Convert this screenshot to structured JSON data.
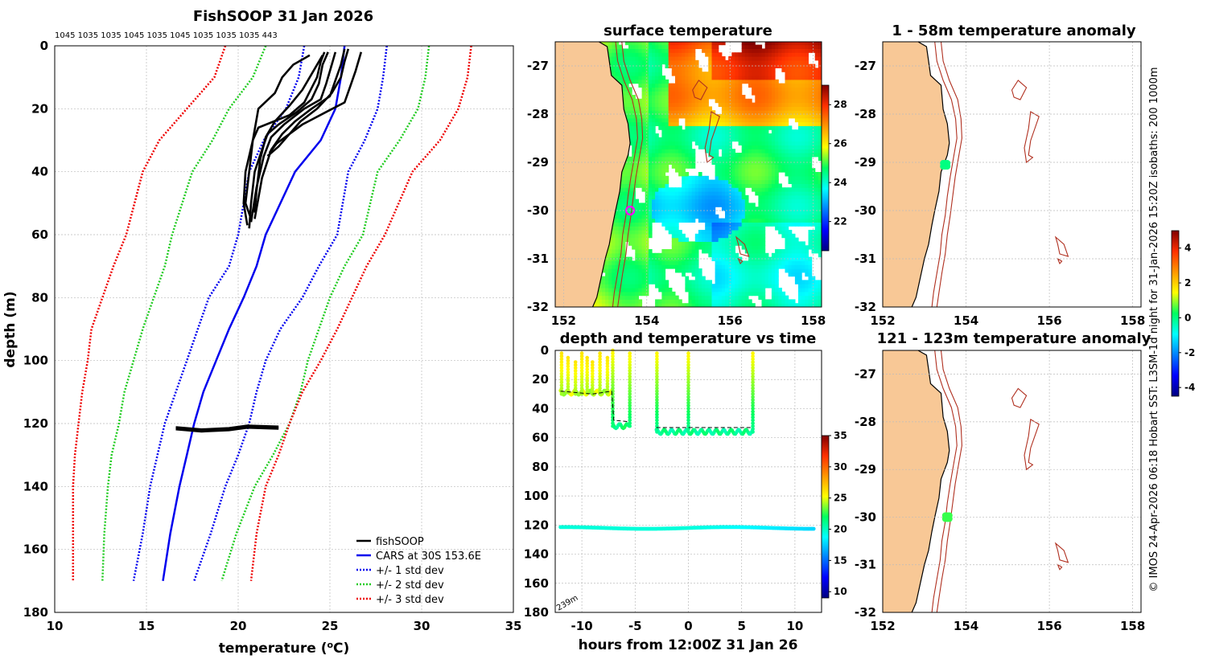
{
  "profile_panel": {
    "title": "FishSOOP 31 Jan 2026",
    "top_labels": "1045 1035 1035 1045 1035 1045 1035 1035 1035 443",
    "xlabel": "temperature (",
    "xlabel_sup": "o",
    "xlabel_end": "C)",
    "ylabel": "depth (m)",
    "legend": [
      {
        "label": "fishSOOP",
        "color": "#000000",
        "style": "solid"
      },
      {
        "label": "CARS at 30S 153.6E",
        "color": "#0000ee",
        "style": "solid"
      },
      {
        "label": "+/- 1 std dev",
        "color": "#0000ee",
        "style": "dotted"
      },
      {
        "label": "+/- 2 std dev",
        "color": "#22cc22",
        "style": "dotted"
      },
      {
        "label": "+/- 3 std dev",
        "color": "#ee0000",
        "style": "dotted"
      }
    ]
  },
  "sst_panel": {
    "title": "surface temperature"
  },
  "time_panel": {
    "title": "depth and temperature vs time",
    "xlabel": "hours from 12:00Z 31 Jan 26",
    "depth_note": "239m"
  },
  "anom_panel_top": {
    "title": "1 - 58m temperature anomaly"
  },
  "anom_panel_bottom": {
    "title": "121 - 123m temperature anomaly"
  },
  "credit": "© IMOS 24-Apr-2026 06:18 Hobart SST: L3SM-1d night for 31-Jan-2026 15:20Z isobaths: 200  1000m",
  "colors": {
    "land": "#f8c896",
    "cars": "#0000ee",
    "std1": "#0000ee",
    "std2": "#22cc22",
    "std3": "#ee0000",
    "isobath": "#b03020"
  },
  "chart_data": [
    {
      "type": "line",
      "name": "temperature profile",
      "xlim": [
        10,
        35
      ],
      "ylim": [
        0,
        180
      ],
      "xticks": [
        10,
        15,
        20,
        25,
        30,
        35
      ],
      "yticks": [
        0,
        20,
        40,
        60,
        80,
        100,
        120,
        140,
        160,
        180
      ],
      "series": [
        {
          "name": "CARS at 30S 153.6E",
          "x": [
            25.8,
            25.6,
            25.3,
            24.5,
            23.1,
            21.5,
            21.0,
            20.3,
            19.5,
            18.8,
            18.1,
            17.6,
            17.2,
            16.8,
            16.3,
            15.9
          ],
          "y": [
            0,
            10,
            20,
            30,
            40,
            60,
            70,
            80,
            90,
            100,
            110,
            120,
            130,
            140,
            155,
            170
          ]
        },
        {
          "name": "-1 std",
          "x": [
            23.6,
            23.3,
            22.6,
            21.4,
            20.6,
            20.0,
            19.5,
            18.4,
            17.8,
            17.2,
            16.6,
            16.0,
            15.6,
            15.2,
            14.8,
            14.3
          ],
          "y": [
            0,
            10,
            20,
            30,
            40,
            60,
            70,
            80,
            90,
            100,
            110,
            120,
            130,
            140,
            155,
            170
          ]
        },
        {
          "name": "+1 std",
          "x": [
            28.1,
            27.9,
            27.6,
            26.9,
            26.0,
            25.4,
            24.4,
            23.5,
            22.3,
            21.5,
            21.0,
            20.6,
            20.0,
            19.3,
            18.5,
            17.6
          ],
          "y": [
            0,
            10,
            20,
            30,
            40,
            60,
            70,
            80,
            90,
            100,
            110,
            120,
            130,
            140,
            155,
            170
          ]
        },
        {
          "name": "-2 std",
          "x": [
            21.5,
            20.8,
            19.5,
            18.6,
            17.5,
            16.4,
            16.0,
            15.4,
            14.8,
            14.3,
            13.8,
            13.5,
            13.1,
            12.9,
            12.7,
            12.6
          ],
          "y": [
            0,
            10,
            20,
            30,
            40,
            60,
            70,
            80,
            90,
            100,
            110,
            120,
            130,
            140,
            155,
            170
          ]
        },
        {
          "name": "+2 std",
          "x": [
            30.4,
            30.2,
            29.8,
            28.8,
            27.6,
            26.8,
            25.8,
            25.0,
            24.4,
            23.8,
            23.4,
            22.8,
            21.9,
            20.9,
            19.9,
            19.1
          ],
          "y": [
            0,
            10,
            20,
            30,
            40,
            60,
            70,
            80,
            90,
            100,
            110,
            120,
            130,
            140,
            155,
            170
          ]
        },
        {
          "name": "-3 std",
          "x": [
            19.3,
            18.7,
            17.2,
            15.7,
            14.8,
            13.9,
            13.2,
            12.6,
            12.0,
            11.8,
            11.5,
            11.3,
            11.1,
            11.0,
            11.0,
            11.0
          ],
          "y": [
            0,
            10,
            20,
            30,
            40,
            60,
            70,
            80,
            90,
            100,
            110,
            120,
            130,
            140,
            155,
            170
          ]
        },
        {
          "name": "+3 std",
          "x": [
            32.7,
            32.5,
            32.0,
            31.0,
            29.5,
            28.0,
            27.0,
            26.2,
            25.4,
            24.5,
            23.5,
            22.8,
            22.2,
            21.5,
            21.0,
            20.7
          ],
          "y": [
            0,
            10,
            20,
            30,
            40,
            60,
            70,
            80,
            90,
            100,
            110,
            120,
            130,
            140,
            155,
            170
          ]
        }
      ],
      "casts": [
        {
          "x": [
            24.7,
            24.5,
            24.3,
            23.6,
            22.8,
            21.1,
            20.8,
            20.6,
            20.4,
            20.3,
            20.5
          ],
          "y": [
            2,
            5,
            10,
            18,
            22,
            26,
            30,
            35,
            40,
            50,
            57
          ]
        },
        {
          "x": [
            24.9,
            24.6,
            24.4,
            24.0,
            23.2,
            22.2,
            21.6,
            21.3,
            20.9,
            20.7,
            20.6
          ],
          "y": [
            2,
            6,
            12,
            17,
            21,
            25,
            28,
            33,
            40,
            50,
            58
          ]
        },
        {
          "x": [
            25.3,
            25.1,
            24.8,
            24.5,
            23.6,
            22.5,
            21.8,
            21.4,
            21.0,
            20.7
          ],
          "y": [
            2,
            6,
            12,
            17,
            20,
            25,
            29,
            35,
            45,
            56
          ]
        },
        {
          "x": [
            25.8,
            25.6,
            25.3,
            25.0,
            24.0,
            23.1,
            22.4,
            21.8,
            21.3,
            20.9
          ],
          "y": [
            1,
            6,
            11,
            16,
            20,
            24,
            28,
            33,
            42,
            55
          ]
        },
        {
          "x": [
            26.0,
            25.8,
            25.6,
            25.1,
            24.3,
            23.4,
            22.8,
            22.2,
            21.6
          ],
          "y": [
            1,
            5,
            10,
            15,
            20,
            24,
            28,
            32,
            35
          ]
        },
        {
          "x": [
            26.7,
            26.4,
            26.1,
            25.8,
            24.8,
            23.5,
            22.8,
            22.1,
            21.7
          ],
          "y": [
            2,
            8,
            13,
            18,
            21,
            25,
            28,
            31,
            34
          ]
        },
        {
          "x": [
            23.9,
            23.0,
            22.4,
            22.0,
            21.1,
            20.8,
            20.6,
            20.4,
            20.7
          ],
          "y": [
            3,
            6,
            10,
            15,
            20,
            30,
            40,
            50,
            55
          ]
        },
        {
          "x": [
            24.6,
            24.1,
            23.5,
            22.8,
            22.0,
            21.5,
            21.2,
            21.0,
            20.9
          ],
          "y": [
            3,
            8,
            14,
            19,
            24,
            29,
            36,
            46,
            53
          ]
        }
      ],
      "deep_band": {
        "x": [
          16.6,
          18.0,
          19.5,
          20.5,
          22.2
        ],
        "y": [
          121.5,
          122.2,
          121.8,
          121.0,
          121.3
        ]
      },
      "legend_loc": "lower-right"
    },
    {
      "type": "heatmap",
      "name": "surface temperature",
      "lon_range": [
        151.8,
        158.2
      ],
      "lat_range": [
        -32,
        -26.5
      ],
      "xticks": [
        152,
        154,
        156,
        158
      ],
      "yticks": [
        -27,
        -28,
        -29,
        -30,
        -31,
        -32
      ],
      "colorbar_ticks": [
        22,
        24,
        26,
        28
      ],
      "clim": [
        20.5,
        29
      ],
      "marker": {
        "lon": 153.6,
        "lat": -30.0
      }
    },
    {
      "type": "scatter",
      "name": "depth and temperature vs time",
      "xlim": [
        -12.5,
        12.5
      ],
      "ylim": [
        0,
        180
      ],
      "xticks": [
        -10,
        -5,
        0,
        5,
        10
      ],
      "yticks": [
        0,
        20,
        40,
        60,
        80,
        100,
        120,
        140,
        160,
        180
      ],
      "colorbar_ticks": [
        10,
        15,
        20,
        25,
        30,
        35
      ],
      "clim": [
        9,
        35
      ],
      "deep_trace_depth": 122,
      "shallow_trace": [
        {
          "t": -12,
          "d": 10
        },
        {
          "t": -11.5,
          "d": 28
        },
        {
          "t": -9,
          "d": 30
        },
        {
          "t": -7.2,
          "d": 30
        },
        {
          "t": -7,
          "d": 50
        },
        {
          "t": -5.6,
          "d": 52
        },
        {
          "t": -3,
          "d": 56
        },
        {
          "t": 6,
          "d": 56
        }
      ]
    },
    {
      "type": "scatter",
      "name": "1 - 58m temperature anomaly",
      "lon_range": [
        152,
        158.2
      ],
      "lat_range": [
        -32,
        -26.5
      ],
      "xticks": [
        152,
        154,
        156,
        158
      ],
      "yticks": [
        -27,
        -28,
        -29,
        -30,
        -31,
        -32
      ],
      "points": [
        {
          "lon": 153.5,
          "lat": -29.05,
          "anomaly": 0.0
        }
      ]
    },
    {
      "type": "scatter",
      "name": "121 - 123m temperature anomaly",
      "lon_range": [
        152,
        158.2
      ],
      "lat_range": [
        -32,
        -26.5
      ],
      "xticks": [
        152,
        154,
        156,
        158
      ],
      "yticks": [
        -27,
        -28,
        -29,
        -30,
        -31,
        -32
      ],
      "points": [
        {
          "lon": 153.55,
          "lat": -30.0,
          "anomaly": 0.5
        }
      ],
      "colorbar_ticks": [
        -4,
        -2,
        0,
        2,
        4
      ],
      "clim": [
        -4.5,
        5
      ]
    }
  ]
}
